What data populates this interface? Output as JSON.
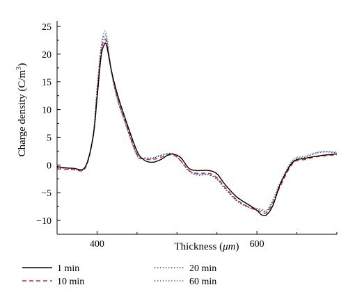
{
  "chart_data": {
    "type": "line",
    "xlabel_main": "Thickness (",
    "xlabel_unit": "μm",
    "xlabel_close": ")",
    "ylabel_main": "Charge density (C/m",
    "ylabel_sup": "3",
    "ylabel_close": ")",
    "xlim": [
      350,
      700
    ],
    "ylim": [
      -12.5,
      26
    ],
    "xticks": [
      400,
      600
    ],
    "yticks": [
      25,
      20,
      15,
      10,
      5,
      0,
      -5,
      -10
    ],
    "x_tick_labels": [
      "400",
      "600"
    ],
    "y_tick_labels": [
      "25",
      "20",
      "15",
      "10",
      "5",
      "0",
      "−5",
      "−10"
    ],
    "legend_position": "bottom",
    "series": [
      {
        "name": "1 min",
        "color": "#000000",
        "style": "solid",
        "x": [
          350,
          370,
          385,
          395,
          400,
          405,
          409,
          412,
          418,
          425,
          435,
          450,
          460,
          470,
          480,
          490,
          497,
          505,
          515,
          525,
          540,
          550,
          560,
          575,
          590,
          600,
          606,
          612,
          620,
          630,
          645,
          660,
          680,
          700
        ],
        "y": [
          -0.3,
          -0.6,
          -0.4,
          5.0,
          12.0,
          19.5,
          21.7,
          21.5,
          17.0,
          13.0,
          8.5,
          2.5,
          0.8,
          0.5,
          1.0,
          1.9,
          1.9,
          1.3,
          -0.6,
          -1.0,
          -1.0,
          -1.6,
          -3.5,
          -5.8,
          -7.2,
          -8.2,
          -9.0,
          -9.0,
          -7.3,
          -3.2,
          0.5,
          1.2,
          1.7,
          2.0
        ]
      },
      {
        "name": "10 min",
        "color": "#d62728",
        "style": "dashed",
        "x": [
          350,
          370,
          385,
          395,
          400,
          405,
          409,
          412,
          418,
          425,
          435,
          450,
          460,
          470,
          480,
          490,
          497,
          505,
          515,
          525,
          540,
          550,
          560,
          575,
          590,
          600,
          606,
          612,
          620,
          630,
          645,
          660,
          680,
          700
        ],
        "y": [
          -0.7,
          -0.8,
          -0.6,
          5.0,
          13.0,
          20.3,
          22.5,
          22.0,
          17.0,
          12.6,
          8.0,
          2.0,
          1.1,
          1.0,
          1.4,
          1.8,
          1.7,
          0.7,
          -1.0,
          -1.5,
          -1.5,
          -2.3,
          -4.0,
          -6.3,
          -7.6,
          -8.2,
          -8.5,
          -8.6,
          -6.9,
          -3.6,
          0.3,
          1.0,
          1.6,
          1.8
        ]
      },
      {
        "name": "20 min",
        "color": "#1f3fa6",
        "style": "dotted",
        "x": [
          350,
          370,
          385,
          395,
          400,
          405,
          409,
          412,
          418,
          425,
          435,
          450,
          460,
          470,
          480,
          490,
          497,
          505,
          515,
          525,
          540,
          550,
          560,
          575,
          590,
          600,
          606,
          612,
          620,
          630,
          645,
          660,
          680,
          700
        ],
        "y": [
          -0.5,
          -0.7,
          -0.5,
          5.2,
          13.4,
          20.7,
          23.2,
          22.6,
          16.8,
          12.2,
          7.8,
          1.8,
          1.2,
          1.2,
          1.7,
          2.0,
          1.8,
          0.6,
          -1.1,
          -1.8,
          -1.8,
          -2.6,
          -4.3,
          -6.5,
          -7.7,
          -8.0,
          -8.2,
          -8.4,
          -6.6,
          -3.2,
          0.7,
          1.4,
          2.3,
          2.2
        ]
      },
      {
        "name": "60 min",
        "color": "#2f6f8f",
        "style": "dotted",
        "x": [
          350,
          370,
          385,
          395,
          400,
          405,
          409,
          412,
          418,
          425,
          435,
          450,
          460,
          470,
          480,
          490,
          497,
          505,
          515,
          525,
          540,
          550,
          560,
          575,
          590,
          600,
          606,
          612,
          620,
          630,
          645,
          660,
          680,
          700
        ],
        "y": [
          -0.4,
          -0.6,
          -0.4,
          5.4,
          13.8,
          21.2,
          23.9,
          23.2,
          16.9,
          12.0,
          7.6,
          1.7,
          1.3,
          1.3,
          1.8,
          2.1,
          1.9,
          0.7,
          -1.0,
          -1.7,
          -1.7,
          -2.5,
          -4.2,
          -6.4,
          -7.6,
          -7.8,
          -8.0,
          -8.2,
          -6.3,
          -2.9,
          0.9,
          1.6,
          2.4,
          2.3
        ]
      }
    ]
  }
}
